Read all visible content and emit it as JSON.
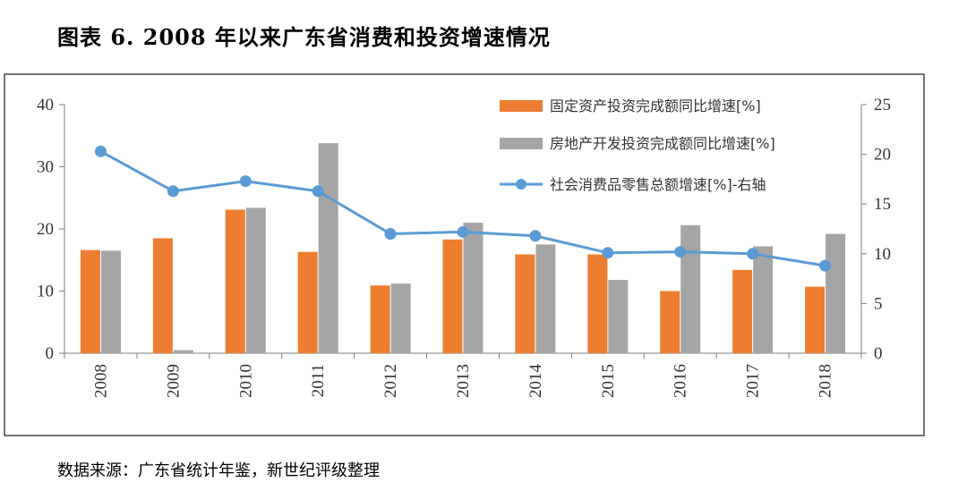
{
  "title": "图表 6. 2008 年以来广东省消费和投资增速情况",
  "source": "数据来源：广东省统计年鉴，新世纪评级整理",
  "colors": {
    "fixed": "#ED7D31",
    "realestate": "#A5A5A5",
    "retail": "#5B9BD5"
  },
  "chart_data": {
    "type": "bar",
    "categories": [
      "2008",
      "2009",
      "2010",
      "2011",
      "2012",
      "2013",
      "2014",
      "2015",
      "2016",
      "2017",
      "2018"
    ],
    "series": [
      {
        "name": "固定资产投资完成额同比增速[%]",
        "type": "bar",
        "axis": "left",
        "values": [
          16.6,
          18.5,
          23.1,
          16.3,
          10.9,
          18.3,
          15.9,
          15.9,
          10.0,
          13.4,
          10.7
        ]
      },
      {
        "name": "房地产开发投资完成额同比增速[%]",
        "type": "bar",
        "axis": "left",
        "values": [
          16.5,
          0.5,
          23.4,
          33.8,
          11.2,
          21.0,
          17.5,
          11.8,
          20.6,
          17.2,
          19.2
        ]
      },
      {
        "name": "社会消费品零售总额增速[%]-右轴",
        "type": "line",
        "axis": "right",
        "values": [
          20.3,
          16.3,
          17.3,
          16.3,
          12.0,
          12.2,
          11.8,
          10.1,
          10.2,
          10.0,
          8.8
        ]
      }
    ],
    "ylim": [
      0,
      40
    ],
    "yticks": [
      "0",
      "10",
      "20",
      "30",
      "40"
    ],
    "y2lim": [
      0,
      25
    ],
    "y2ticks": [
      "0",
      "5",
      "10",
      "15",
      "20",
      "25"
    ],
    "legend": "top-right"
  }
}
